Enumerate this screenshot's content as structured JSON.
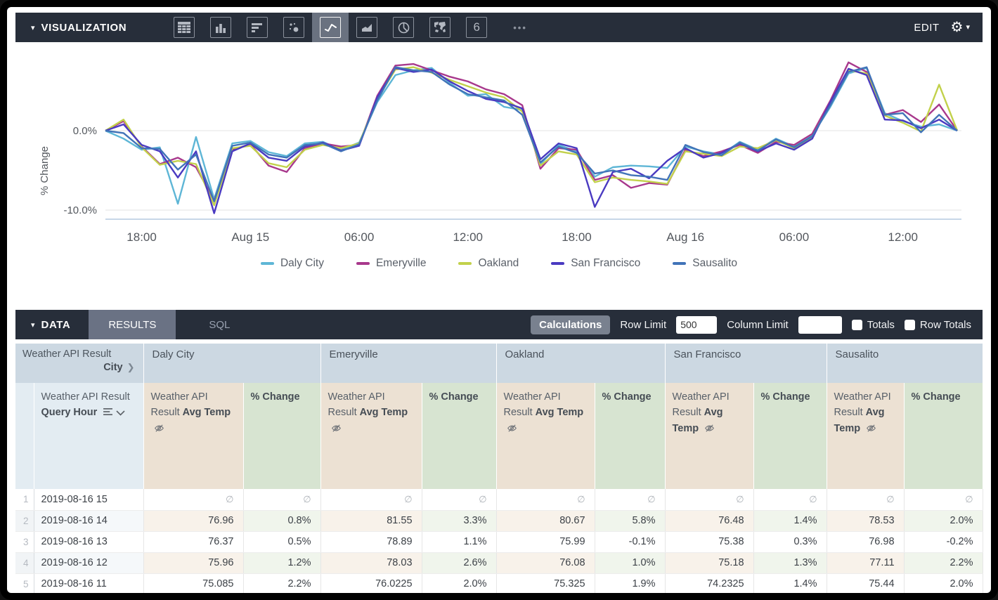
{
  "icons": {
    "caret_down": "▾",
    "gear": "⚙",
    "ellipsis": "•••",
    "chevron_right": "❯"
  },
  "viz_bar": {
    "section_label": "VISUALIZATION",
    "edit_label": "EDIT",
    "icons": [
      {
        "name": "table-chart-icon",
        "selected": false
      },
      {
        "name": "column-chart-icon",
        "selected": false
      },
      {
        "name": "bar-chart-icon",
        "selected": false
      },
      {
        "name": "scatter-chart-icon",
        "selected": false
      },
      {
        "name": "line-chart-icon",
        "selected": true
      },
      {
        "name": "area-chart-icon",
        "selected": false
      },
      {
        "name": "pie-chart-icon",
        "selected": false
      },
      {
        "name": "map-chart-icon",
        "selected": false
      },
      {
        "name": "single-value-icon",
        "selected": false
      }
    ],
    "single_value_glyph": "6"
  },
  "chart_data": {
    "type": "line",
    "title": "",
    "xlabel": "",
    "ylabel": "% Change",
    "x_description": "Hourly points from Aug 14 16:00 through Aug 16 15:00 (48 points)",
    "ylim": [
      -10.5,
      9
    ],
    "y_ticks": [
      {
        "value": 0,
        "label": "0.0%"
      },
      {
        "value": -10,
        "label": "-10.0%"
      }
    ],
    "x_ticks": [
      {
        "i": 2,
        "label": "18:00"
      },
      {
        "i": 8,
        "label": "Aug 15"
      },
      {
        "i": 14,
        "label": "06:00"
      },
      {
        "i": 20,
        "label": "12:00"
      },
      {
        "i": 26,
        "label": "18:00"
      },
      {
        "i": 32,
        "label": "Aug 16"
      },
      {
        "i": 38,
        "label": "06:00"
      },
      {
        "i": 44,
        "label": "12:00"
      }
    ],
    "legend_position": "bottom",
    "grid": true,
    "series": [
      {
        "name": "Daly City",
        "color": "#5eb6d6",
        "values": [
          0,
          -1.0,
          -2.4,
          -2.1,
          -9.2,
          -0.8,
          -8.6,
          -1.6,
          -1.3,
          -2.7,
          -3.2,
          -1.6,
          -1.4,
          -2.4,
          -1.5,
          3.6,
          7.0,
          7.6,
          7.9,
          6.0,
          4.4,
          4.6,
          3.0,
          2.6,
          -4.2,
          -1.8,
          -2.6,
          -5.8,
          -4.6,
          -4.4,
          -4.5,
          -4.7,
          -2.0,
          -2.6,
          -3.0,
          -1.4,
          -2.4,
          -1.0,
          -2.0,
          -0.6,
          3.0,
          7.2,
          7.9,
          2.2,
          1.2,
          0.5,
          0.8,
          0.0
        ]
      },
      {
        "name": "Emeryville",
        "color": "#a8388c",
        "values": [
          0,
          1.2,
          -2.0,
          -4.2,
          -3.4,
          -4.6,
          -8.8,
          -2.4,
          -1.7,
          -4.4,
          -5.2,
          -2.2,
          -1.6,
          -2.0,
          -1.8,
          4.4,
          8.2,
          8.4,
          7.6,
          6.8,
          6.2,
          5.2,
          4.6,
          3.2,
          -4.8,
          -2.2,
          -2.4,
          -6.2,
          -5.6,
          -7.2,
          -6.6,
          -6.8,
          -2.4,
          -3.2,
          -2.6,
          -1.8,
          -2.8,
          -1.4,
          -1.8,
          -0.4,
          3.8,
          8.6,
          7.4,
          2.0,
          2.6,
          1.1,
          3.3,
          0.0
        ]
      },
      {
        "name": "Oakland",
        "color": "#c2d14b",
        "values": [
          0,
          1.4,
          -2.1,
          -4.3,
          -3.8,
          -4.2,
          -9.4,
          -2.2,
          -1.9,
          -4.1,
          -4.6,
          -2.4,
          -1.8,
          -2.2,
          -1.6,
          4.0,
          7.7,
          8.0,
          7.3,
          6.4,
          5.6,
          4.8,
          4.2,
          2.4,
          -4.4,
          -2.6,
          -3.0,
          -6.5,
          -5.9,
          -6.2,
          -6.4,
          -6.7,
          -2.6,
          -2.9,
          -3.2,
          -2.0,
          -2.2,
          -1.2,
          -2.2,
          -0.8,
          3.4,
          7.6,
          7.2,
          1.9,
          1.0,
          -0.1,
          5.8,
          0.0
        ]
      },
      {
        "name": "San Francisco",
        "color": "#4a3ac1",
        "values": [
          0,
          0.8,
          -1.8,
          -2.6,
          -5.9,
          -2.6,
          -10.4,
          -2.6,
          -1.6,
          -3.4,
          -3.8,
          -2.0,
          -1.5,
          -2.5,
          -1.9,
          4.2,
          7.9,
          7.4,
          7.7,
          6.2,
          5.0,
          4.0,
          3.6,
          2.8,
          -3.6,
          -1.6,
          -2.2,
          -9.6,
          -5.2,
          -4.8,
          -6.0,
          -3.8,
          -2.2,
          -3.4,
          -2.8,
          -1.6,
          -2.6,
          -1.6,
          -2.4,
          -1.0,
          3.6,
          7.8,
          7.0,
          1.4,
          1.3,
          0.3,
          1.4,
          0.0
        ]
      },
      {
        "name": "Sausalito",
        "color": "#4173b8",
        "values": [
          0,
          -0.3,
          -2.2,
          -2.3,
          -4.9,
          -3.0,
          -8.9,
          -1.9,
          -1.5,
          -3.0,
          -3.4,
          -1.8,
          -1.6,
          -2.6,
          -1.7,
          3.8,
          8.0,
          7.6,
          7.4,
          5.8,
          4.6,
          4.2,
          3.8,
          2.0,
          -4.0,
          -2.0,
          -2.8,
          -5.4,
          -5.0,
          -5.6,
          -5.8,
          -6.2,
          -1.8,
          -2.7,
          -3.1,
          -1.5,
          -2.5,
          -1.1,
          -2.1,
          -0.7,
          3.2,
          7.4,
          8.0,
          2.0,
          2.2,
          -0.2,
          2.0,
          0.0
        ]
      }
    ]
  },
  "data_bar": {
    "section_label": "DATA",
    "tabs": [
      {
        "label": "RESULTS",
        "active": true
      },
      {
        "label": "SQL",
        "active": false
      }
    ],
    "calculations_label": "Calculations",
    "row_limit_label": "Row Limit",
    "row_limit_value": "500",
    "column_limit_label": "Column Limit",
    "column_limit_value": "",
    "totals_label": "Totals",
    "row_totals_label": "Row Totals",
    "totals_checked": false,
    "row_totals_checked": false
  },
  "table": {
    "corner": {
      "line1": "Weather API Result",
      "dimension": "City"
    },
    "city_groups": [
      "Daly City",
      "Emeryville",
      "Oakland",
      "San Francisco",
      "Sausalito"
    ],
    "row_dimension_header": {
      "prefix": "Weather API Result",
      "bold": "Query Hour"
    },
    "measure_header": {
      "prefix": "Weather API Result",
      "bold": "Avg Temp"
    },
    "calc_header": {
      "bold": "% Change"
    },
    "null_symbol": "∅",
    "rows": [
      {
        "n": "1",
        "hour": "2019-08-16 15",
        "values": [
          "∅",
          "∅",
          "∅",
          "∅",
          "∅",
          "∅",
          "∅",
          "∅",
          "∅",
          "∅"
        ]
      },
      {
        "n": "2",
        "hour": "2019-08-16 14",
        "values": [
          "76.96",
          "0.8%",
          "81.55",
          "3.3%",
          "80.67",
          "5.8%",
          "76.48",
          "1.4%",
          "78.53",
          "2.0%"
        ]
      },
      {
        "n": "3",
        "hour": "2019-08-16 13",
        "values": [
          "76.37",
          "0.5%",
          "78.89",
          "1.1%",
          "75.99",
          "-0.1%",
          "75.38",
          "0.3%",
          "76.98",
          "-0.2%"
        ]
      },
      {
        "n": "4",
        "hour": "2019-08-16 12",
        "values": [
          "75.96",
          "1.2%",
          "78.03",
          "2.6%",
          "76.08",
          "1.0%",
          "75.18",
          "1.3%",
          "77.11",
          "2.2%"
        ]
      },
      {
        "n": "5",
        "hour": "2019-08-16 11",
        "values": [
          "75.085",
          "2.2%",
          "76.0225",
          "2.0%",
          "75.325",
          "1.9%",
          "74.2325",
          "1.4%",
          "75.44",
          "2.0%"
        ]
      }
    ]
  },
  "colors": {
    "bar_background": "#272e3a",
    "active_tab": "#6a7284",
    "header_city": "#ccd8e2",
    "header_dimension": "#e3ecf2",
    "header_measure": "#ece1d3",
    "header_calc": "#d7e4d1"
  }
}
